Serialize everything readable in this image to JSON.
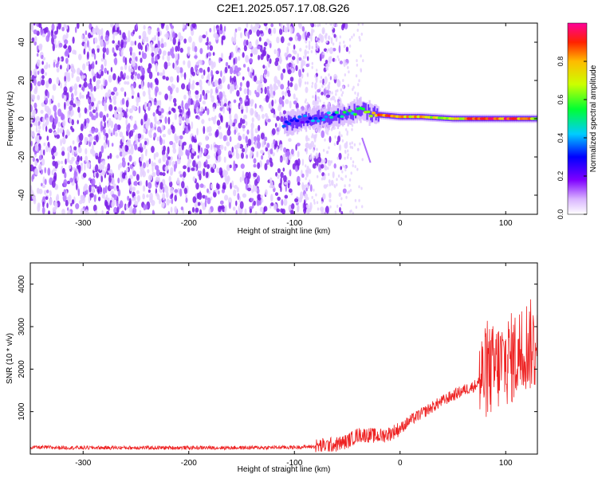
{
  "title": "C2E1.2025.057.17.08.G26",
  "colors": {
    "snr_line": "#ee2222",
    "spectrogram_noise": "#7a1fe6",
    "axes": "#000000"
  },
  "chart_data": [
    {
      "type": "heatmap",
      "xlabel": "Height of straight line (km)",
      "ylabel": "Frequency (Hz)",
      "xlim": [
        -350,
        130
      ],
      "ylim": [
        -50,
        50
      ],
      "xticks": [
        -300,
        -200,
        -100,
        0,
        100
      ],
      "xtick_labels": [
        "-300",
        "-200",
        "-100",
        "0",
        "100"
      ],
      "yticks": [
        -40,
        -20,
        0,
        20,
        40
      ],
      "ytick_labels": [
        "-40",
        "-20",
        "0",
        "20",
        "40"
      ],
      "colorbar": {
        "label": "Normalized spectral amplitude",
        "range": [
          0,
          1
        ],
        "ticks": [
          0.0,
          0.2,
          0.4,
          0.6,
          0.8
        ],
        "tick_labels": [
          "0.0",
          "0.2",
          "0.4",
          "0.6",
          "0.8"
        ]
      },
      "signal_track": {
        "x": [
          -110,
          -90,
          -70,
          -50,
          -40,
          -30,
          -20,
          0,
          20,
          50,
          80,
          110,
          130
        ],
        "freq": [
          -3,
          0,
          1,
          2,
          5,
          3,
          2,
          1,
          1,
          0,
          0,
          0,
          0
        ],
        "amplitude": [
          0.25,
          0.3,
          0.35,
          0.45,
          0.55,
          0.6,
          0.85,
          0.8,
          0.75,
          0.7,
          0.9,
          0.85,
          0.7
        ]
      },
      "noise_region": {
        "x": [
          -350,
          -90
        ],
        "amplitude": 0.15
      }
    },
    {
      "type": "line",
      "xlabel": "Height of straight line (km)",
      "ylabel": "SNR (10 * v/v)",
      "xlim": [
        -350,
        130
      ],
      "ylim": [
        0,
        4500
      ],
      "xticks": [
        -300,
        -200,
        -100,
        0,
        100
      ],
      "xtick_labels": [
        "-300",
        "-200",
        "-100",
        "0",
        "100"
      ],
      "yticks": [
        1000,
        2000,
        3000,
        4000
      ],
      "ytick_labels": [
        "1000",
        "2000",
        "3000",
        "4000"
      ],
      "series": [
        {
          "x": [
            -350,
            -300,
            -250,
            -200,
            -150,
            -100,
            -80,
            -60,
            -50,
            -40,
            -30,
            -20,
            -10,
            0,
            10,
            20,
            30,
            40,
            50,
            60,
            70,
            75,
            80,
            90,
            100,
            110,
            120,
            130
          ],
          "y": [
            160,
            150,
            150,
            150,
            150,
            160,
            180,
            230,
            300,
            450,
            450,
            420,
            480,
            600,
            800,
            950,
            1100,
            1250,
            1380,
            1500,
            1600,
            1700,
            1900,
            2000,
            2200,
            2300,
            2600,
            2500
          ]
        }
      ]
    }
  ]
}
